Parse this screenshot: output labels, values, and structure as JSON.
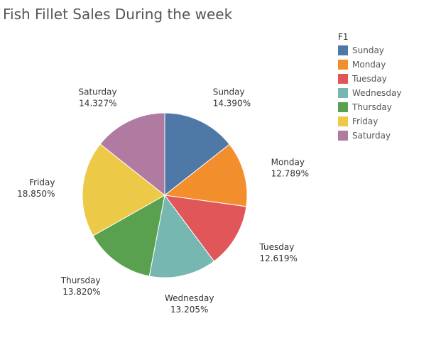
{
  "chart_data": {
    "type": "pie",
    "title": "Fish Fillet Sales During the week",
    "legend_title": "F1",
    "legend_placement": "top-right",
    "categories": [
      "Sunday",
      "Monday",
      "Tuesday",
      "Wednesday",
      "Thursday",
      "Friday",
      "Saturday"
    ],
    "values": [
      14.39,
      12.789,
      12.619,
      13.205,
      13.82,
      18.85,
      14.327
    ],
    "value_labels": [
      "14.390%",
      "12.789%",
      "12.619%",
      "13.205%",
      "13.820%",
      "18.850%",
      "14.327%"
    ],
    "colors": [
      "#4e79a7",
      "#f28e2b",
      "#e15759",
      "#76b7b2",
      "#59a14f",
      "#edc948",
      "#b07aa1"
    ]
  }
}
